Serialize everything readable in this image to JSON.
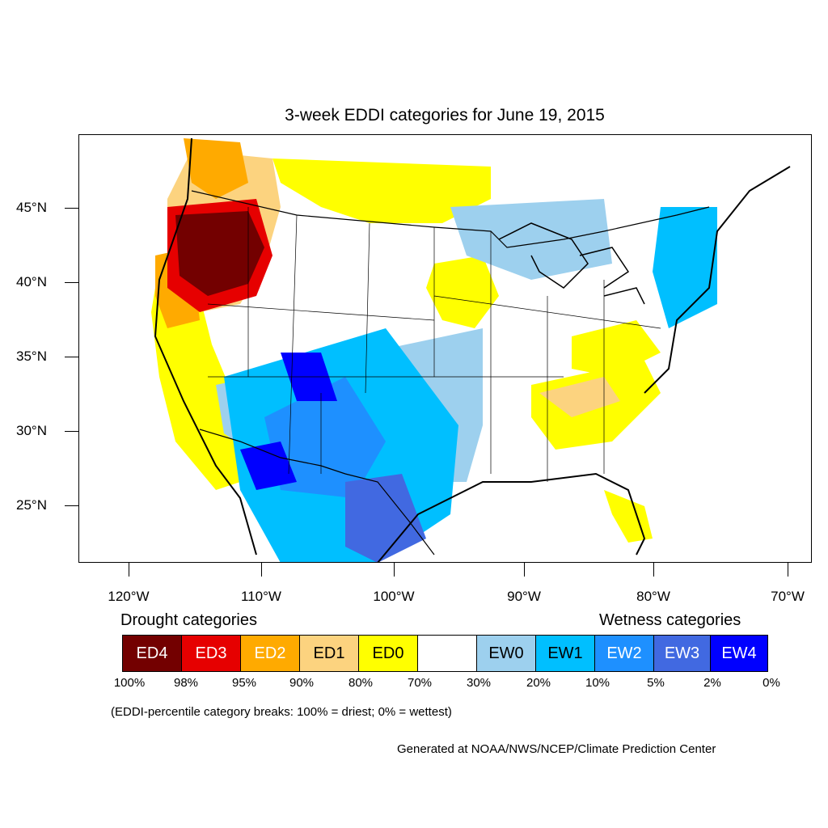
{
  "title": "3-week EDDI categories for June 19, 2015",
  "lat_labels": [
    "45°N",
    "40°N",
    "35°N",
    "30°N",
    "25°N"
  ],
  "lon_labels": [
    "120°W",
    "110°W",
    "100°W",
    "90°W",
    "80°W",
    "70°W"
  ],
  "legend": {
    "drought_heading": "Drought categories",
    "wetness_heading": "Wetness categories",
    "categories": [
      {
        "label": "ED4",
        "color": "#730000",
        "text_color": "#ffffff"
      },
      {
        "label": "ED3",
        "color": "#e60000",
        "text_color": "#ffffff"
      },
      {
        "label": "ED2",
        "color": "#ffaa00",
        "text_color": "#ffffff"
      },
      {
        "label": "ED1",
        "color": "#fcd37f",
        "text_color": "#000000"
      },
      {
        "label": "ED0",
        "color": "#ffff00",
        "text_color": "#000000"
      },
      {
        "label": "",
        "color": "#ffffff",
        "text_color": "#000000"
      },
      {
        "label": "EW0",
        "color": "#9dd0ee",
        "text_color": "#000000"
      },
      {
        "label": "EW1",
        "color": "#00bfff",
        "text_color": "#000000"
      },
      {
        "label": "EW2",
        "color": "#1e90ff",
        "text_color": "#ffffff"
      },
      {
        "label": "EW3",
        "color": "#4169e1",
        "text_color": "#ffffff"
      },
      {
        "label": "EW4",
        "color": "#0000ff",
        "text_color": "#ffffff"
      }
    ],
    "breaks": [
      "100%",
      "98%",
      "95%",
      "90%",
      "80%",
      "70%",
      "30%",
      "20%",
      "10%",
      "5%",
      "2%",
      "0%"
    ]
  },
  "note": "(EDDI-percentile category breaks: 100% = driest; 0% = wettest)",
  "credit": "Generated at NOAA/NWS/NCEP/Climate Prediction Center"
}
